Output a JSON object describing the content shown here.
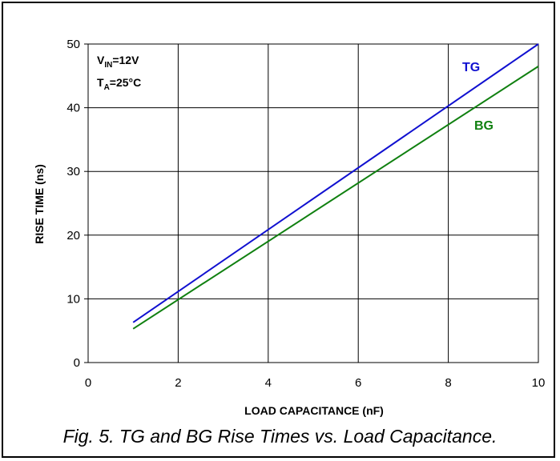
{
  "caption": "Fig. 5. TG and BG Rise Times vs. Load Capacitance.",
  "chart_data": {
    "type": "line",
    "xlabel": "LOAD CAPACITANCE (nF)",
    "ylabel": "RISE TIME (ns)",
    "xlim": [
      0,
      10
    ],
    "ylim": [
      0,
      50
    ],
    "xticks": [
      "0",
      "2",
      "4",
      "6",
      "8",
      "10"
    ],
    "yticks": [
      "0",
      "10",
      "20",
      "30",
      "40",
      "50"
    ],
    "grid": true,
    "annotations": {
      "vin_prefix": "V",
      "vin_sub": "IN",
      "vin_value": "=12V",
      "ta_prefix": "T",
      "ta_sub": "A",
      "ta_value": "=25°C"
    },
    "series": [
      {
        "name": "TG",
        "color": "#1010d0",
        "x": [
          1,
          10
        ],
        "y": [
          6.3,
          50.0
        ]
      },
      {
        "name": "BG",
        "color": "#108010",
        "x": [
          1,
          10
        ],
        "y": [
          5.3,
          46.5
        ]
      }
    ]
  }
}
